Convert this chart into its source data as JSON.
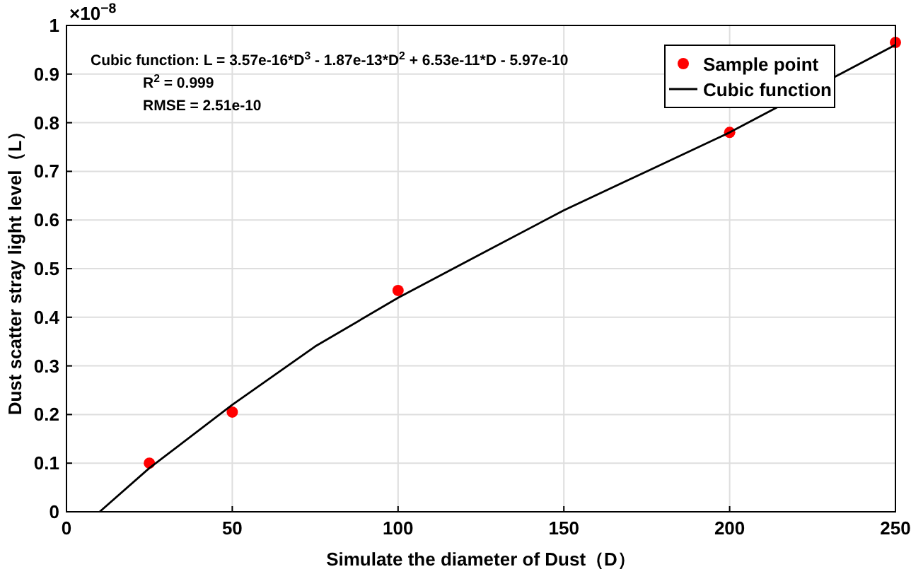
{
  "chart_data": {
    "type": "scatter",
    "xlabel": "Simulate the diameter of Dust（D）",
    "ylabel": "Dust scatter stray light level（L）",
    "series": [
      {
        "name": "Sample point",
        "color": "#ff0000",
        "marker": "circle",
        "x": [
          25,
          50,
          100,
          200,
          250
        ],
        "values": [
          0.1,
          0.205,
          0.455,
          0.78,
          0.965
        ]
      },
      {
        "name": "Cubic function",
        "type": "line",
        "color": "#000000",
        "line_style": "solid",
        "x": [
          10,
          25,
          50,
          75,
          100,
          125,
          150,
          175,
          200,
          250
        ],
        "values": [
          0.0,
          0.09,
          0.22,
          0.34,
          0.44,
          0.53,
          0.62,
          0.7,
          0.78,
          0.96
        ]
      }
    ],
    "xlim": [
      0,
      250
    ],
    "xticks": [
      0,
      50,
      100,
      150,
      200,
      250
    ],
    "ylim": [
      0,
      1
    ],
    "yticks": [
      0,
      0.1,
      0.2,
      0.3,
      0.4,
      0.5,
      0.6,
      0.7,
      0.8,
      0.9,
      1
    ],
    "grid": true,
    "legend": "top right",
    "annotations": [
      "×10$^{−8}$",
      "Cubic function:  L = 3.57e-16*D$^{3}$ - 1.87e-13*D$^{2}$ + 6.53e-11*D - 5.97e-10",
      "R$^{2}$ = 0.999",
      "RMSE = 2.51e-10"
    ]
  }
}
